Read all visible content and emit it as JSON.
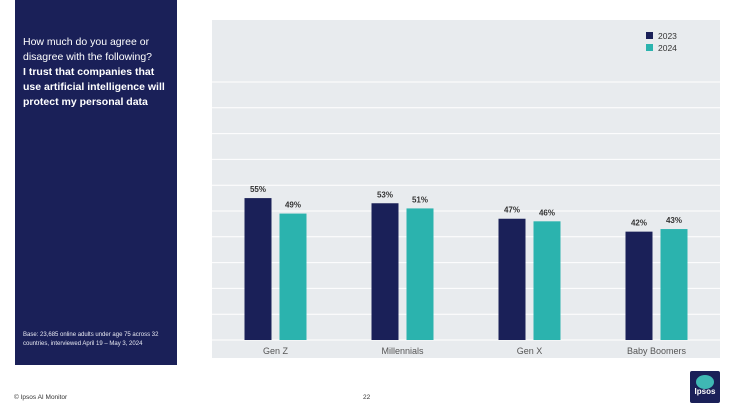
{
  "panel": {
    "question_line": "How much do you agree or disagree with the following?",
    "statement": "I trust that companies that use artificial intelligence will protect my personal data",
    "base_note": "Base: 23,685 online adults under age 75 across 32 countries, interviewed April 19 – May 3, 2024"
  },
  "footer": {
    "source": "© Ipsos AI Monitor",
    "page_number": "22"
  },
  "logo": {
    "text": "Ipsos"
  },
  "colors": {
    "series_2023": "#1a2058",
    "series_2024": "#2bb3ae",
    "panel_bg": "#1a2058",
    "chart_bg": "#e8ebee"
  },
  "chart_data": {
    "type": "bar",
    "categories": [
      "Gen Z",
      "Millennials",
      "Gen X",
      "Baby Boomers"
    ],
    "series": [
      {
        "name": "2023",
        "values": [
          55,
          53,
          47,
          42
        ],
        "labels": [
          "55%",
          "53%",
          "47%",
          "42%"
        ]
      },
      {
        "name": "2024",
        "values": [
          49,
          51,
          46,
          43
        ],
        "labels": [
          "49%",
          "51%",
          "46%",
          "43%"
        ]
      }
    ],
    "ylim": [
      0,
      100
    ],
    "grid": true,
    "legend": "top-right",
    "title": "",
    "xlabel": "",
    "ylabel": ""
  }
}
